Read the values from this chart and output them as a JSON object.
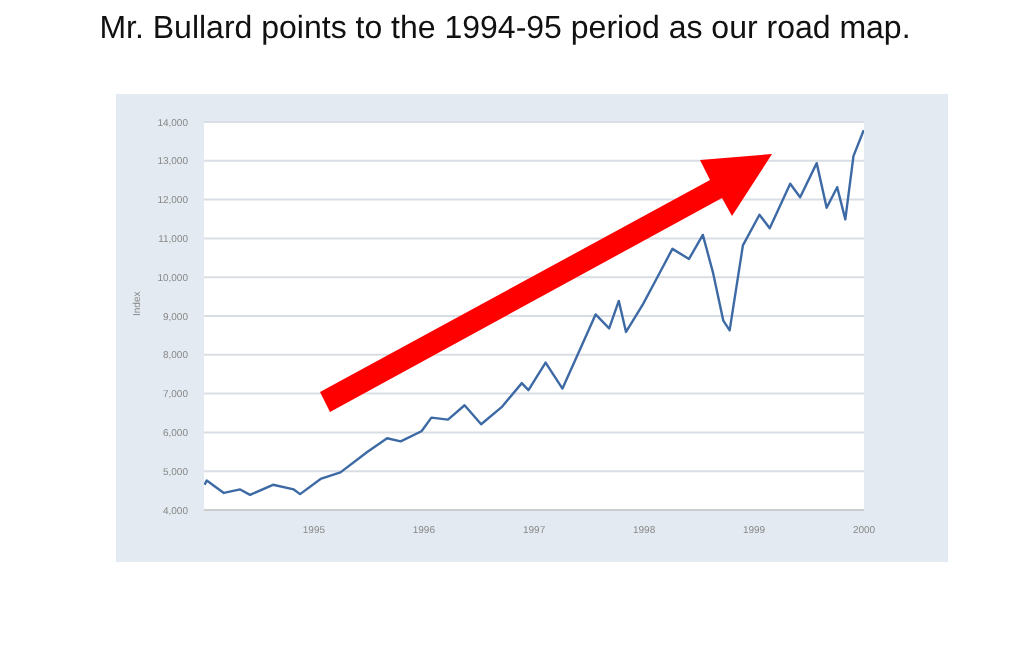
{
  "chart_data": {
    "type": "line",
    "title": "Mr. Bullard points to the 1994-95 period as our road map.",
    "ylabel": "Index",
    "x": [
      "1994-01-03",
      "1994-01-10",
      "1994-03-08",
      "1994-05-01",
      "1994-06-03",
      "1994-08-18",
      "1994-10-26",
      "1994-11-16",
      "1995-01-23",
      "1995-03-30",
      "1995-06-28",
      "1995-09-01",
      "1995-10-16",
      "1995-12-24",
      "1996-01-26",
      "1996-03-21",
      "1996-05-15",
      "1996-07-09",
      "1996-09-15",
      "1996-11-21",
      "1996-12-13",
      "1997-02-08",
      "1997-04-05",
      "1997-05-19",
      "1997-07-24",
      "1997-09-07",
      "1997-10-09",
      "1997-11-02",
      "1997-12-28",
      "1998-02-10",
      "1998-04-05",
      "1998-05-30",
      "1998-07-15",
      "1998-08-18",
      "1998-09-21",
      "1998-10-12",
      "1998-11-25",
      "1999-01-19",
      "1999-02-22",
      "1999-05-01",
      "1999-06-03",
      "1999-07-28",
      "1999-08-30",
      "1999-10-04",
      "1999-10-31",
      "1999-11-27",
      "1999-12-31"
    ],
    "series": [
      {
        "color": "#3d6aa5",
        "values": [
          4650,
          4760,
          4440,
          4530,
          4390,
          4650,
          4530,
          4410,
          4800,
          4970,
          5500,
          5850,
          5770,
          6030,
          6380,
          6330,
          6700,
          6210,
          6650,
          7270,
          7090,
          7800,
          7130,
          7890,
          9040,
          8680,
          9390,
          8590,
          9300,
          9940,
          10730,
          10470,
          11090,
          10110,
          8880,
          8630,
          10820,
          11610,
          11260,
          12410,
          12060,
          12940,
          11790,
          12320,
          11490,
          13120,
          13790
        ]
      }
    ],
    "xlim": [
      "1994-01",
      "2000-01"
    ],
    "xticks": [
      "1995",
      "1996",
      "1997",
      "1998",
      "1999",
      "2000"
    ],
    "ylim": [
      4000,
      14000
    ],
    "yticks": [
      {
        "value": 4000,
        "label": "4,000"
      },
      {
        "value": 5000,
        "label": "5,000"
      },
      {
        "value": 6000,
        "label": "6,000"
      },
      {
        "value": 7000,
        "label": "7,000"
      },
      {
        "value": 8000,
        "label": "8,000"
      },
      {
        "value": 9000,
        "label": "9,000"
      },
      {
        "value": 10000,
        "label": "10,000"
      },
      {
        "value": 11000,
        "label": "11,000"
      },
      {
        "value": 12000,
        "label": "12,000"
      },
      {
        "value": 13000,
        "label": "13,000"
      },
      {
        "value": 14000,
        "label": "14,000"
      }
    ],
    "grid": "y",
    "legend": false,
    "marker": "none",
    "line_style": "solid"
  }
}
